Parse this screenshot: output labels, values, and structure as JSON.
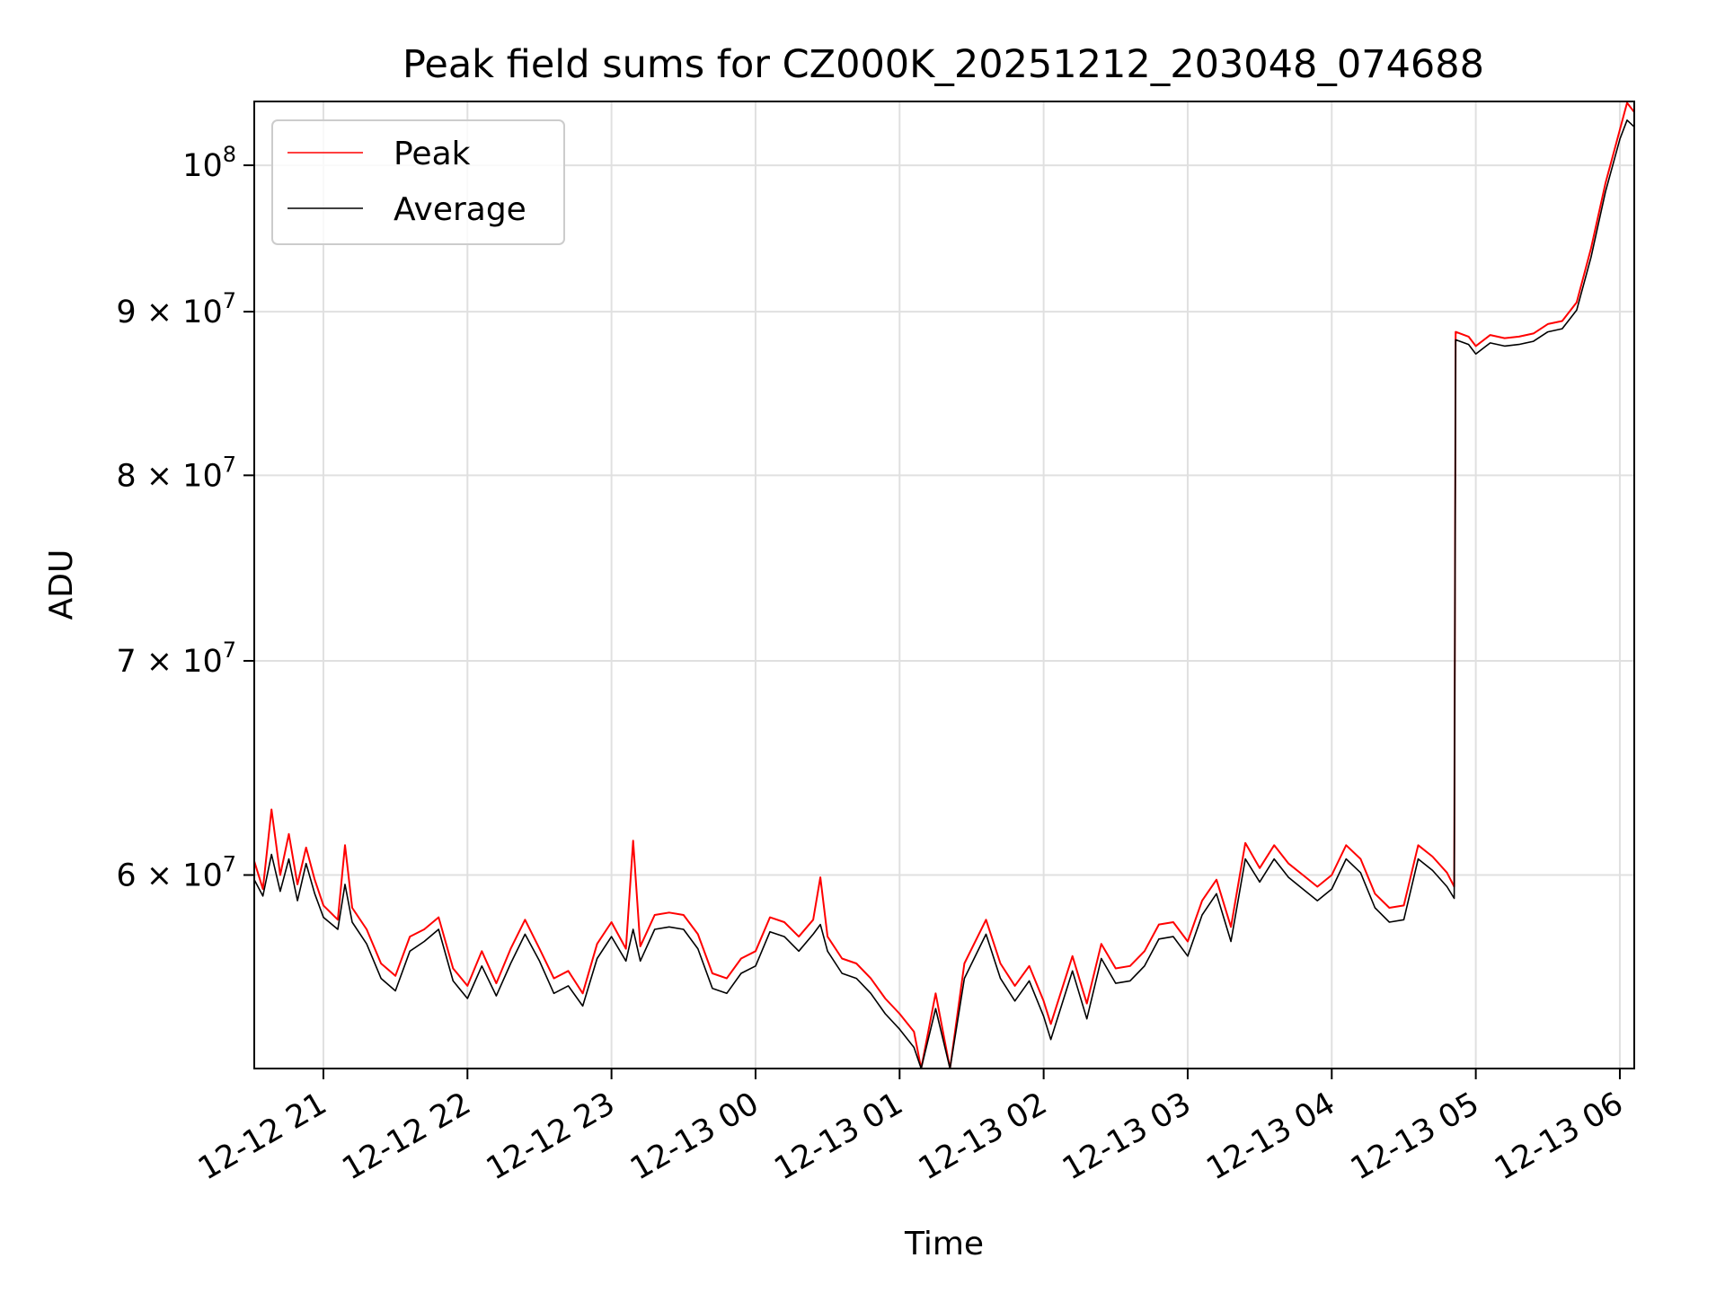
{
  "chart_data": {
    "type": "line",
    "title": "Peak field sums for CZ000K_20251212_203048_074688",
    "xlabel": "Time",
    "ylabel": "ADU",
    "y_scale": "log",
    "x_range_hours": [
      -0.48,
      9.1
    ],
    "ylim": [
      52200000,
      104700000
    ],
    "grid": true,
    "legend_position": "upper left",
    "x_ticks": [
      {
        "hour": 0,
        "label": "12-12 21"
      },
      {
        "hour": 1,
        "label": "12-12 22"
      },
      {
        "hour": 2,
        "label": "12-12 23"
      },
      {
        "hour": 3,
        "label": "12-13 00"
      },
      {
        "hour": 4,
        "label": "12-13 01"
      },
      {
        "hour": 5,
        "label": "12-13 02"
      },
      {
        "hour": 6,
        "label": "12-13 03"
      },
      {
        "hour": 7,
        "label": "12-13 04"
      },
      {
        "hour": 8,
        "label": "12-13 05"
      },
      {
        "hour": 9,
        "label": "12-13 06"
      }
    ],
    "y_ticks": [
      {
        "value": 60000000,
        "mantissa": "6",
        "exp": "7"
      },
      {
        "value": 70000000,
        "mantissa": "7",
        "exp": "7"
      },
      {
        "value": 80000000,
        "mantissa": "8",
        "exp": "7"
      },
      {
        "value": 90000000,
        "mantissa": "9",
        "exp": "7"
      },
      {
        "value": 100000000,
        "mantissa": "",
        "exp": "8"
      }
    ],
    "series": [
      {
        "name": "Peak",
        "color": "#ff0000",
        "points": [
          [
            -0.48,
            60600000
          ],
          [
            -0.42,
            59400000
          ],
          [
            -0.36,
            62900000
          ],
          [
            -0.3,
            60000000
          ],
          [
            -0.24,
            61800000
          ],
          [
            -0.18,
            59600000
          ],
          [
            -0.12,
            61200000
          ],
          [
            -0.06,
            59800000
          ],
          [
            0.0,
            58700000
          ],
          [
            0.1,
            58100000
          ],
          [
            0.15,
            61300000
          ],
          [
            0.2,
            58600000
          ],
          [
            0.3,
            57700000
          ],
          [
            0.4,
            56300000
          ],
          [
            0.5,
            55800000
          ],
          [
            0.6,
            57400000
          ],
          [
            0.7,
            57700000
          ],
          [
            0.8,
            58200000
          ],
          [
            0.9,
            56100000
          ],
          [
            1.0,
            55400000
          ],
          [
            1.1,
            56800000
          ],
          [
            1.2,
            55500000
          ],
          [
            1.3,
            56900000
          ],
          [
            1.4,
            58100000
          ],
          [
            1.5,
            56900000
          ],
          [
            1.6,
            55700000
          ],
          [
            1.7,
            56000000
          ],
          [
            1.8,
            55100000
          ],
          [
            1.9,
            57100000
          ],
          [
            2.0,
            58000000
          ],
          [
            2.1,
            56900000
          ],
          [
            2.15,
            61500000
          ],
          [
            2.2,
            57000000
          ],
          [
            2.3,
            58300000
          ],
          [
            2.4,
            58400000
          ],
          [
            2.5,
            58300000
          ],
          [
            2.6,
            57500000
          ],
          [
            2.7,
            55900000
          ],
          [
            2.8,
            55700000
          ],
          [
            2.9,
            56500000
          ],
          [
            3.0,
            56800000
          ],
          [
            3.1,
            58200000
          ],
          [
            3.2,
            58000000
          ],
          [
            3.3,
            57400000
          ],
          [
            3.4,
            58100000
          ],
          [
            3.45,
            59900000
          ],
          [
            3.5,
            57400000
          ],
          [
            3.6,
            56500000
          ],
          [
            3.7,
            56300000
          ],
          [
            3.8,
            55700000
          ],
          [
            3.9,
            54900000
          ],
          [
            4.0,
            54300000
          ],
          [
            4.1,
            53600000
          ],
          [
            4.15,
            52200000
          ],
          [
            4.25,
            55100000
          ],
          [
            4.35,
            52200000
          ],
          [
            4.45,
            56300000
          ],
          [
            4.6,
            58100000
          ],
          [
            4.7,
            56300000
          ],
          [
            4.8,
            55400000
          ],
          [
            4.9,
            56200000
          ],
          [
            5.0,
            54800000
          ],
          [
            5.05,
            53900000
          ],
          [
            5.2,
            56600000
          ],
          [
            5.3,
            54700000
          ],
          [
            5.4,
            57100000
          ],
          [
            5.5,
            56100000
          ],
          [
            5.6,
            56200000
          ],
          [
            5.7,
            56800000
          ],
          [
            5.8,
            57900000
          ],
          [
            5.9,
            58000000
          ],
          [
            6.0,
            57200000
          ],
          [
            6.1,
            58900000
          ],
          [
            6.2,
            59800000
          ],
          [
            6.3,
            57800000
          ],
          [
            6.4,
            61400000
          ],
          [
            6.5,
            60300000
          ],
          [
            6.6,
            61300000
          ],
          [
            6.7,
            60500000
          ],
          [
            6.8,
            60000000
          ],
          [
            6.9,
            59500000
          ],
          [
            7.0,
            60000000
          ],
          [
            7.1,
            61300000
          ],
          [
            7.2,
            60700000
          ],
          [
            7.3,
            59200000
          ],
          [
            7.4,
            58600000
          ],
          [
            7.5,
            58700000
          ],
          [
            7.6,
            61300000
          ],
          [
            7.7,
            60800000
          ],
          [
            7.8,
            60100000
          ],
          [
            7.85,
            59500000
          ],
          [
            7.86,
            88700000
          ],
          [
            7.95,
            88400000
          ],
          [
            8.0,
            87800000
          ],
          [
            8.1,
            88500000
          ],
          [
            8.2,
            88300000
          ],
          [
            8.3,
            88400000
          ],
          [
            8.4,
            88600000
          ],
          [
            8.5,
            89200000
          ],
          [
            8.6,
            89400000
          ],
          [
            8.7,
            90600000
          ],
          [
            8.8,
            94200000
          ],
          [
            8.9,
            98700000
          ],
          [
            9.0,
            102600000
          ],
          [
            9.05,
            104600000
          ],
          [
            9.1,
            103900000
          ]
        ]
      },
      {
        "name": "Average",
        "color": "#000000",
        "points": [
          [
            -0.48,
            59800000
          ],
          [
            -0.42,
            59100000
          ],
          [
            -0.36,
            60900000
          ],
          [
            -0.3,
            59300000
          ],
          [
            -0.24,
            60700000
          ],
          [
            -0.18,
            58900000
          ],
          [
            -0.12,
            60500000
          ],
          [
            -0.06,
            59200000
          ],
          [
            0.0,
            58200000
          ],
          [
            0.1,
            57700000
          ],
          [
            0.15,
            59600000
          ],
          [
            0.2,
            58000000
          ],
          [
            0.3,
            57100000
          ],
          [
            0.4,
            55700000
          ],
          [
            0.5,
            55200000
          ],
          [
            0.6,
            56800000
          ],
          [
            0.7,
            57200000
          ],
          [
            0.8,
            57700000
          ],
          [
            0.9,
            55600000
          ],
          [
            1.0,
            54900000
          ],
          [
            1.1,
            56200000
          ],
          [
            1.2,
            55000000
          ],
          [
            1.3,
            56300000
          ],
          [
            1.4,
            57500000
          ],
          [
            1.5,
            56400000
          ],
          [
            1.6,
            55100000
          ],
          [
            1.7,
            55400000
          ],
          [
            1.8,
            54600000
          ],
          [
            1.9,
            56500000
          ],
          [
            2.0,
            57400000
          ],
          [
            2.1,
            56400000
          ],
          [
            2.15,
            57700000
          ],
          [
            2.2,
            56400000
          ],
          [
            2.3,
            57700000
          ],
          [
            2.4,
            57800000
          ],
          [
            2.5,
            57700000
          ],
          [
            2.6,
            56900000
          ],
          [
            2.7,
            55300000
          ],
          [
            2.8,
            55100000
          ],
          [
            2.9,
            55900000
          ],
          [
            3.0,
            56200000
          ],
          [
            3.1,
            57600000
          ],
          [
            3.2,
            57400000
          ],
          [
            3.3,
            56800000
          ],
          [
            3.4,
            57500000
          ],
          [
            3.45,
            57900000
          ],
          [
            3.5,
            56800000
          ],
          [
            3.6,
            55900000
          ],
          [
            3.7,
            55700000
          ],
          [
            3.8,
            55100000
          ],
          [
            3.9,
            54300000
          ],
          [
            4.0,
            53700000
          ],
          [
            4.1,
            53000000
          ],
          [
            4.15,
            52200000
          ],
          [
            4.25,
            54500000
          ],
          [
            4.35,
            52200000
          ],
          [
            4.45,
            55700000
          ],
          [
            4.6,
            57500000
          ],
          [
            4.7,
            55700000
          ],
          [
            4.8,
            54800000
          ],
          [
            4.9,
            55600000
          ],
          [
            5.0,
            54200000
          ],
          [
            5.05,
            53300000
          ],
          [
            5.2,
            56000000
          ],
          [
            5.3,
            54100000
          ],
          [
            5.4,
            56500000
          ],
          [
            5.5,
            55500000
          ],
          [
            5.6,
            55600000
          ],
          [
            5.7,
            56200000
          ],
          [
            5.8,
            57300000
          ],
          [
            5.9,
            57400000
          ],
          [
            6.0,
            56600000
          ],
          [
            6.1,
            58300000
          ],
          [
            6.2,
            59200000
          ],
          [
            6.3,
            57200000
          ],
          [
            6.4,
            60700000
          ],
          [
            6.5,
            59700000
          ],
          [
            6.6,
            60700000
          ],
          [
            6.7,
            59900000
          ],
          [
            6.8,
            59400000
          ],
          [
            6.9,
            58900000
          ],
          [
            7.0,
            59400000
          ],
          [
            7.1,
            60700000
          ],
          [
            7.2,
            60100000
          ],
          [
            7.3,
            58600000
          ],
          [
            7.4,
            58000000
          ],
          [
            7.5,
            58100000
          ],
          [
            7.6,
            60700000
          ],
          [
            7.7,
            60200000
          ],
          [
            7.8,
            59500000
          ],
          [
            7.85,
            59000000
          ],
          [
            7.86,
            88200000
          ],
          [
            7.95,
            87900000
          ],
          [
            8.0,
            87300000
          ],
          [
            8.1,
            88000000
          ],
          [
            8.2,
            87800000
          ],
          [
            8.3,
            87900000
          ],
          [
            8.4,
            88100000
          ],
          [
            8.5,
            88700000
          ],
          [
            8.6,
            88900000
          ],
          [
            8.7,
            90100000
          ],
          [
            8.8,
            93600000
          ],
          [
            8.9,
            98100000
          ],
          [
            9.0,
            101900000
          ],
          [
            9.05,
            103300000
          ],
          [
            9.1,
            102800000
          ]
        ]
      }
    ]
  }
}
